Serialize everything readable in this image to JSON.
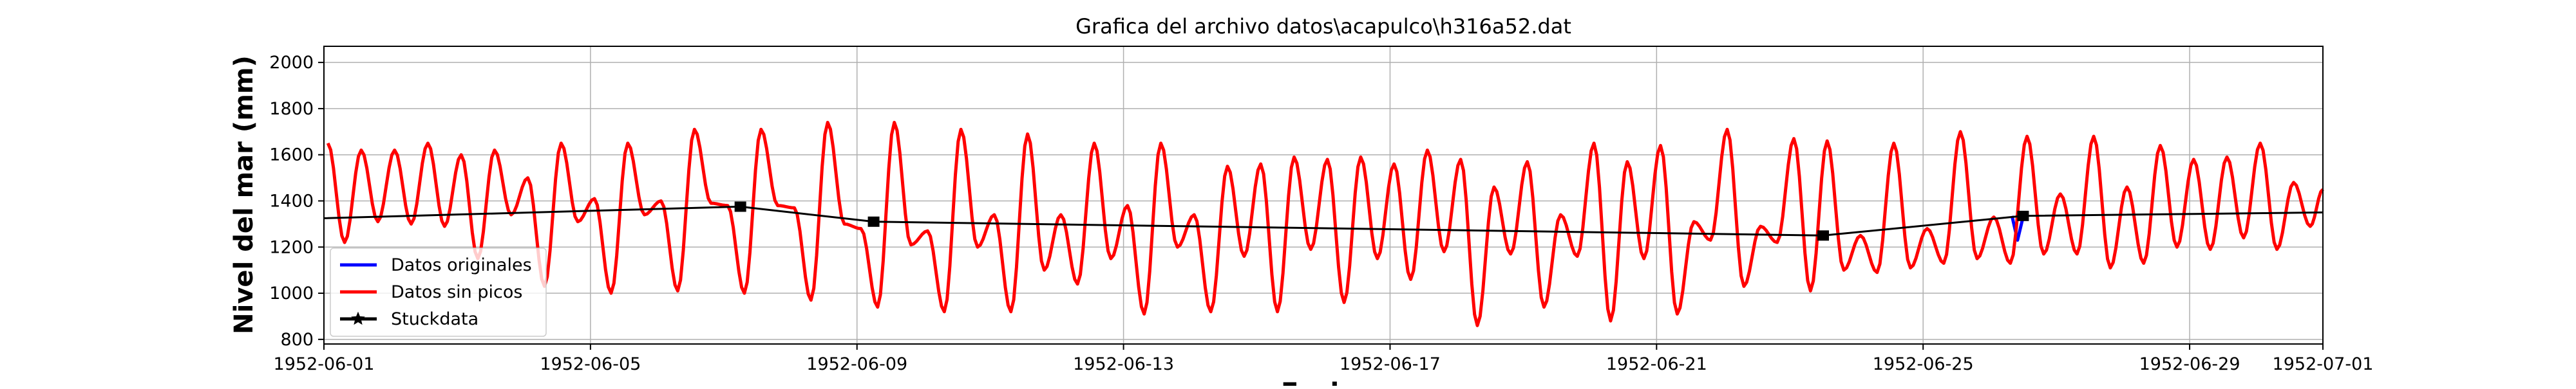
{
  "chart_data": {
    "type": "line",
    "title": "Grafica del archivo datos\\acapulco\\h316a52.dat",
    "xlabel": "Fecha",
    "ylabel": "Nivel del mar (mm)",
    "x_range": [
      "1952-06-01",
      "1952-07-01"
    ],
    "ylim": [
      780,
      2070
    ],
    "x_ticks": [
      "1952-06-01",
      "1952-06-05",
      "1952-06-09",
      "1952-06-13",
      "1952-06-17",
      "1952-06-21",
      "1952-06-25",
      "1952-06-29",
      "1952-07-01"
    ],
    "y_ticks": [
      800,
      1000,
      1200,
      1400,
      1600,
      1800,
      2000
    ],
    "grid": true,
    "legend_position": "lower-left",
    "series": [
      {
        "name": "Datos originales",
        "color": "#0000ff",
        "marker": "none",
        "description_of_values": "identical to Datos sin picos except short dips at marked stuck points",
        "points": [
          [
            "1952-06-26 08:00",
            1335
          ],
          [
            "1952-06-26 10:00",
            1230
          ],
          [
            "1952-06-26 12:00",
            1330
          ]
        ]
      },
      {
        "name": "Datos sin picos",
        "color": "#ff0000",
        "marker": "none",
        "daily_extrema": [
          {
            "day": "1952-06-01",
            "highs": [
              1650,
              1620
            ],
            "lows": [
              1220,
              1310
            ]
          },
          {
            "day": "1952-06-02",
            "highs": [
              1620,
              1650
            ],
            "lows": [
              1300,
              1290
            ]
          },
          {
            "day": "1952-06-03",
            "highs": [
              1600,
              1620
            ],
            "lows": [
              1150,
              1340
            ]
          },
          {
            "day": "1952-06-04",
            "highs": [
              1500,
              1650
            ],
            "lows": [
              1030,
              1310
            ]
          },
          {
            "day": "1952-06-05",
            "highs": [
              1410,
              1650
            ],
            "lows": [
              1000,
              1340
            ]
          },
          {
            "day": "1952-06-06",
            "highs": [
              1400,
              1710
            ],
            "lows": [
              1010,
              1390
            ]
          },
          {
            "day": "1952-06-07",
            "highs": [
              1380,
              1710
            ],
            "lows": [
              1000,
              1380
            ]
          },
          {
            "day": "1952-06-08",
            "highs": [
              1370,
              1740
            ],
            "lows": [
              970,
              1300
            ]
          },
          {
            "day": "1952-06-09",
            "highs": [
              1280,
              1740
            ],
            "lows": [
              940,
              1210
            ]
          },
          {
            "day": "1952-06-10",
            "highs": [
              1270,
              1710
            ],
            "lows": [
              920,
              1200
            ]
          },
          {
            "day": "1952-06-11",
            "highs": [
              1340,
              1690
            ],
            "lows": [
              920,
              1100
            ]
          },
          {
            "day": "1952-06-12",
            "highs": [
              1340,
              1650
            ],
            "lows": [
              1040,
              1150
            ]
          },
          {
            "day": "1952-06-13",
            "highs": [
              1380,
              1650
            ],
            "lows": [
              910,
              1200
            ]
          },
          {
            "day": "1952-06-14",
            "highs": [
              1340,
              1550
            ],
            "lows": [
              920,
              1160
            ]
          },
          {
            "day": "1952-06-15",
            "highs": [
              1560,
              1590
            ],
            "lows": [
              920,
              1190
            ]
          },
          {
            "day": "1952-06-16",
            "highs": [
              1580,
              1590
            ],
            "lows": [
              960,
              1150
            ]
          },
          {
            "day": "1952-06-17",
            "highs": [
              1560,
              1620
            ],
            "lows": [
              1060,
              1180
            ]
          },
          {
            "day": "1952-06-18",
            "highs": [
              1580,
              1460
            ],
            "lows": [
              860,
              1170
            ]
          },
          {
            "day": "1952-06-19",
            "highs": [
              1570,
              1340
            ],
            "lows": [
              940,
              1160
            ]
          },
          {
            "day": "1952-06-20",
            "highs": [
              1650,
              1570
            ],
            "lows": [
              880,
              1150
            ]
          },
          {
            "day": "1952-06-21",
            "highs": [
              1640,
              1310
            ],
            "lows": [
              910,
              1230
            ]
          },
          {
            "day": "1952-06-22",
            "highs": [
              1710,
              1290
            ],
            "lows": [
              1030,
              1220
            ]
          },
          {
            "day": "1952-06-23",
            "highs": [
              1670,
              1660
            ],
            "lows": [
              1010,
              1100
            ]
          },
          {
            "day": "1952-06-24",
            "highs": [
              1250,
              1650
            ],
            "lows": [
              1090,
              1110
            ]
          },
          {
            "day": "1952-06-25",
            "highs": [
              1280,
              1700
            ],
            "lows": [
              1130,
              1150
            ]
          },
          {
            "day": "1952-06-26",
            "highs": [
              1330,
              1680
            ],
            "lows": [
              1130,
              1170
            ]
          },
          {
            "day": "1952-06-27",
            "highs": [
              1430,
              1680
            ],
            "lows": [
              1170,
              1110
            ]
          },
          {
            "day": "1952-06-28",
            "highs": [
              1460,
              1640
            ],
            "lows": [
              1130,
              1200
            ]
          },
          {
            "day": "1952-06-29",
            "highs": [
              1580,
              1590
            ],
            "lows": [
              1190,
              1240
            ]
          },
          {
            "day": "1952-06-30",
            "highs": [
              1650,
              1480
            ],
            "lows": [
              1190,
              1290
            ]
          }
        ]
      },
      {
        "name": "Stuckdata",
        "color": "#000000",
        "marker": "star",
        "points": [
          [
            "1952-06-01 00:00",
            1325
          ],
          [
            "1952-06-07 06:00",
            1375
          ],
          [
            "1952-06-09 06:00",
            1310
          ],
          [
            "1952-06-23 12:00",
            1250
          ],
          [
            "1952-06-26 12:00",
            1335
          ],
          [
            "1952-07-01 00:00",
            1350
          ]
        ]
      }
    ]
  }
}
